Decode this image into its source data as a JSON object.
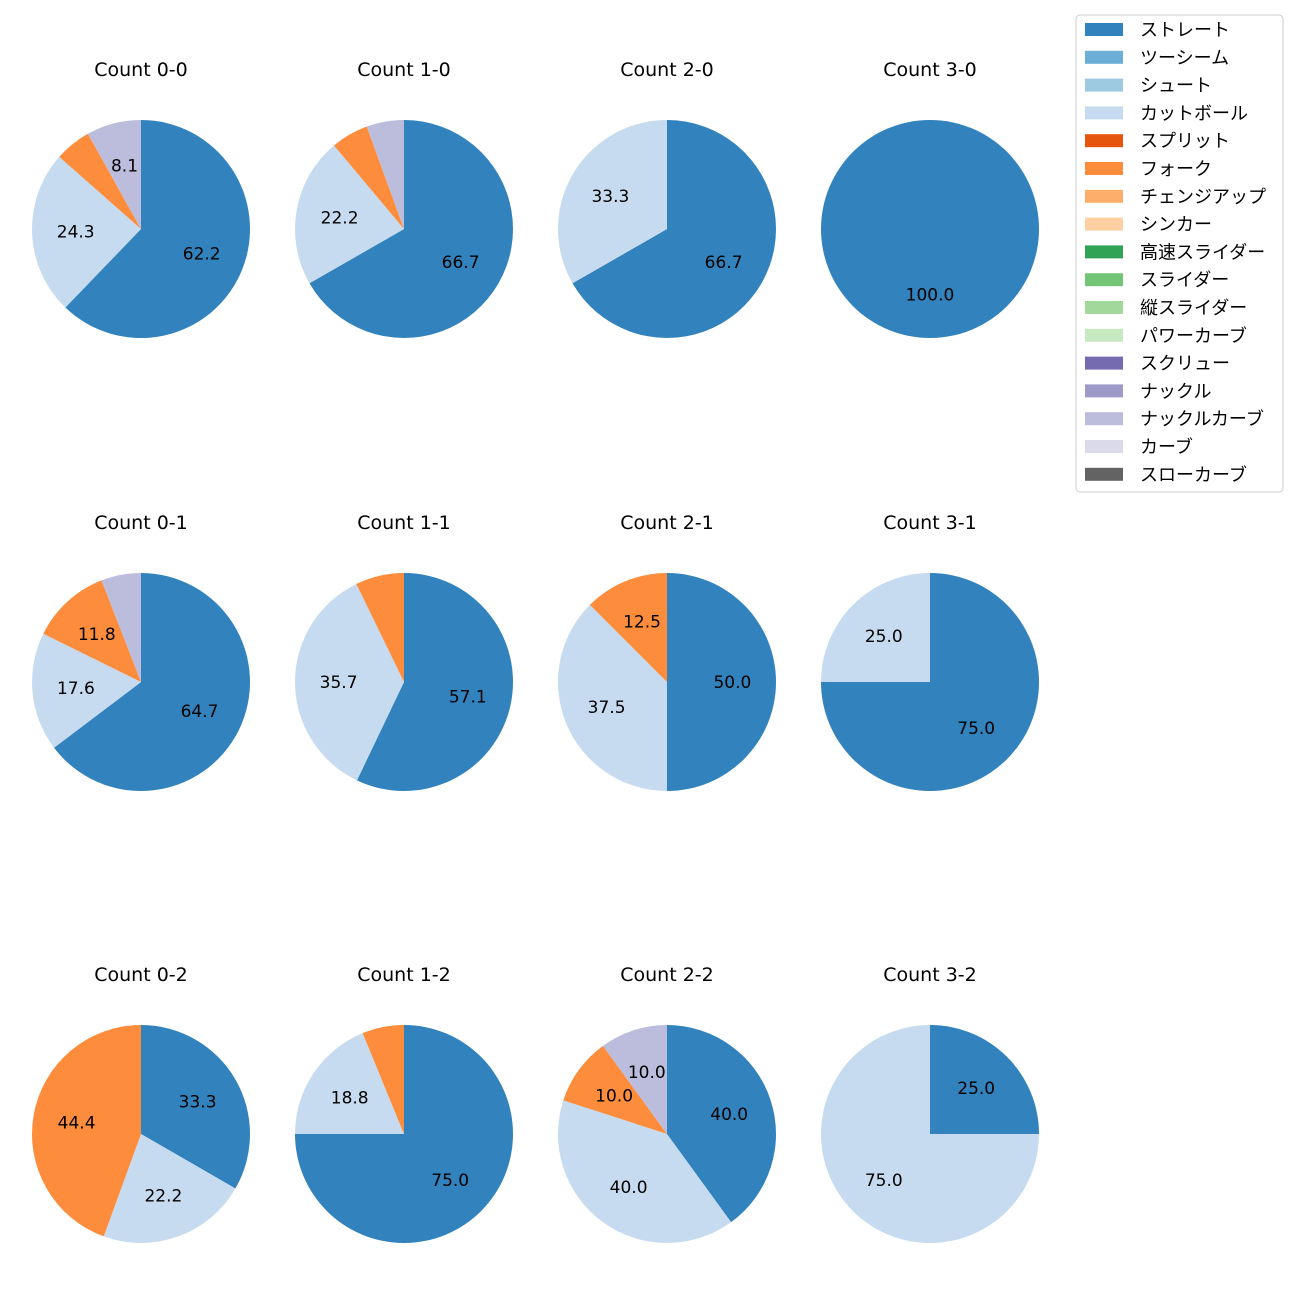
{
  "legend": [
    {
      "name": "ストレート",
      "color": "#3182bd"
    },
    {
      "name": "ツーシーム",
      "color": "#6baed6"
    },
    {
      "name": "シュート",
      "color": "#9ecae1"
    },
    {
      "name": "カットボール",
      "color": "#c6dbef"
    },
    {
      "name": "スプリット",
      "color": "#e6550d"
    },
    {
      "name": "フォーク",
      "color": "#fd8d3c"
    },
    {
      "name": "チェンジアップ",
      "color": "#fdae6b"
    },
    {
      "name": "シンカー",
      "color": "#fdd0a2"
    },
    {
      "name": "高速スライダー",
      "color": "#31a354"
    },
    {
      "name": "スライダー",
      "color": "#74c476"
    },
    {
      "name": "縦スライダー",
      "color": "#a1d99b"
    },
    {
      "name": "パワーカーブ",
      "color": "#c7e9c0"
    },
    {
      "name": "スクリュー",
      "color": "#756bb1"
    },
    {
      "name": "ナックル",
      "color": "#9e9ac8"
    },
    {
      "name": "ナックルカーブ",
      "color": "#bcbddc"
    },
    {
      "name": "カーブ",
      "color": "#dadaeb"
    },
    {
      "name": "スローカーブ",
      "color": "#636363"
    }
  ],
  "chart_data": [
    {
      "type": "pie",
      "title": "Count 0-0",
      "slices": [
        {
          "label": "ストレート",
          "value": 62.2,
          "text": "62.2"
        },
        {
          "label": "カットボール",
          "value": 24.3,
          "text": "24.3"
        },
        {
          "label": "フォーク",
          "value": 5.4,
          "text": ""
        },
        {
          "label": "ナックルカーブ",
          "value": 8.1,
          "text": "8.1"
        }
      ]
    },
    {
      "type": "pie",
      "title": "Count 1-0",
      "slices": [
        {
          "label": "ストレート",
          "value": 66.7,
          "text": "66.7"
        },
        {
          "label": "カットボール",
          "value": 22.2,
          "text": "22.2"
        },
        {
          "label": "フォーク",
          "value": 5.55,
          "text": ""
        },
        {
          "label": "ナックルカーブ",
          "value": 5.55,
          "text": ""
        }
      ]
    },
    {
      "type": "pie",
      "title": "Count 2-0",
      "slices": [
        {
          "label": "ストレート",
          "value": 66.7,
          "text": "66.7"
        },
        {
          "label": "カットボール",
          "value": 33.3,
          "text": "33.3"
        }
      ]
    },
    {
      "type": "pie",
      "title": "Count 3-0",
      "slices": [
        {
          "label": "ストレート",
          "value": 100.0,
          "text": "100.0"
        }
      ]
    },
    {
      "type": "pie",
      "title": "Count 0-1",
      "slices": [
        {
          "label": "ストレート",
          "value": 64.7,
          "text": "64.7"
        },
        {
          "label": "カットボール",
          "value": 17.6,
          "text": "17.6"
        },
        {
          "label": "フォーク",
          "value": 11.8,
          "text": "11.8"
        },
        {
          "label": "ナックルカーブ",
          "value": 5.9,
          "text": ""
        }
      ]
    },
    {
      "type": "pie",
      "title": "Count 1-1",
      "slices": [
        {
          "label": "ストレート",
          "value": 57.1,
          "text": "57.1"
        },
        {
          "label": "カットボール",
          "value": 35.7,
          "text": "35.7"
        },
        {
          "label": "フォーク",
          "value": 7.2,
          "text": ""
        }
      ]
    },
    {
      "type": "pie",
      "title": "Count 2-1",
      "slices": [
        {
          "label": "ストレート",
          "value": 50.0,
          "text": "50.0"
        },
        {
          "label": "カットボール",
          "value": 37.5,
          "text": "37.5"
        },
        {
          "label": "フォーク",
          "value": 12.5,
          "text": "12.5"
        }
      ]
    },
    {
      "type": "pie",
      "title": "Count 3-1",
      "slices": [
        {
          "label": "ストレート",
          "value": 75.0,
          "text": "75.0"
        },
        {
          "label": "カットボール",
          "value": 25.0,
          "text": "25.0"
        }
      ]
    },
    {
      "type": "pie",
      "title": "Count 0-2",
      "slices": [
        {
          "label": "ストレート",
          "value": 33.3,
          "text": "33.3"
        },
        {
          "label": "カットボール",
          "value": 22.2,
          "text": "22.2"
        },
        {
          "label": "フォーク",
          "value": 44.4,
          "text": "44.4"
        }
      ]
    },
    {
      "type": "pie",
      "title": "Count 1-2",
      "slices": [
        {
          "label": "ストレート",
          "value": 75.0,
          "text": "75.0"
        },
        {
          "label": "カットボール",
          "value": 18.8,
          "text": "18.8"
        },
        {
          "label": "フォーク",
          "value": 6.2,
          "text": ""
        }
      ]
    },
    {
      "type": "pie",
      "title": "Count 2-2",
      "slices": [
        {
          "label": "ストレート",
          "value": 40.0,
          "text": "40.0"
        },
        {
          "label": "カットボール",
          "value": 40.0,
          "text": "40.0"
        },
        {
          "label": "フォーク",
          "value": 10.0,
          "text": "10.0"
        },
        {
          "label": "ナックルカーブ",
          "value": 10.0,
          "text": "10.0"
        }
      ]
    },
    {
      "type": "pie",
      "title": "Count 3-2",
      "slices": [
        {
          "label": "ストレート",
          "value": 25.0,
          "text": "25.0"
        },
        {
          "label": "カットボール",
          "value": 75.0,
          "text": "75.0"
        }
      ]
    }
  ]
}
